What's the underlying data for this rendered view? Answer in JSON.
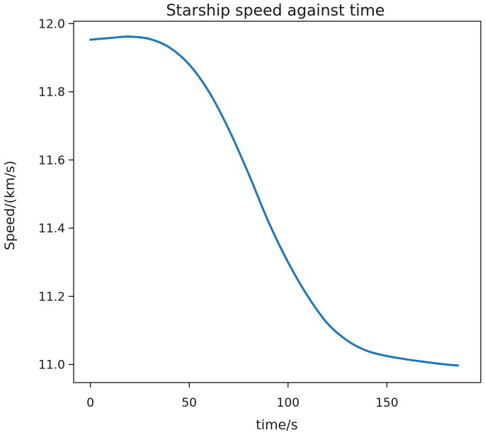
{
  "chart_data": {
    "type": "line",
    "title": "Starship speed against time",
    "xlabel": "time/s",
    "ylabel": "Speed/(km/s)",
    "xlim": [
      -8.5,
      197.5
    ],
    "ylim": [
      10.947,
      12.007
    ],
    "xticks": [
      0,
      50,
      100,
      150
    ],
    "xtick_labels": [
      "0",
      "50",
      "100",
      "150"
    ],
    "yticks": [
      11.0,
      11.2,
      11.4,
      11.6,
      11.8,
      12.0
    ],
    "ytick_labels": [
      "11.0",
      "11.2",
      "11.4",
      "11.6",
      "11.8",
      "12.0"
    ],
    "grid": false,
    "series": [
      {
        "color": "#1f77b4",
        "x": [
          0,
          10,
          20,
          30,
          40,
          50,
          60,
          70,
          80,
          90,
          100,
          110,
          120,
          130,
          140,
          150,
          160,
          170,
          180,
          186
        ],
        "values": [
          11.953,
          11.958,
          11.962,
          11.955,
          11.93,
          11.88,
          11.8,
          11.69,
          11.56,
          11.42,
          11.3,
          11.2,
          11.12,
          11.07,
          11.04,
          11.025,
          11.015,
          11.007,
          11.0,
          10.997
        ]
      }
    ]
  }
}
